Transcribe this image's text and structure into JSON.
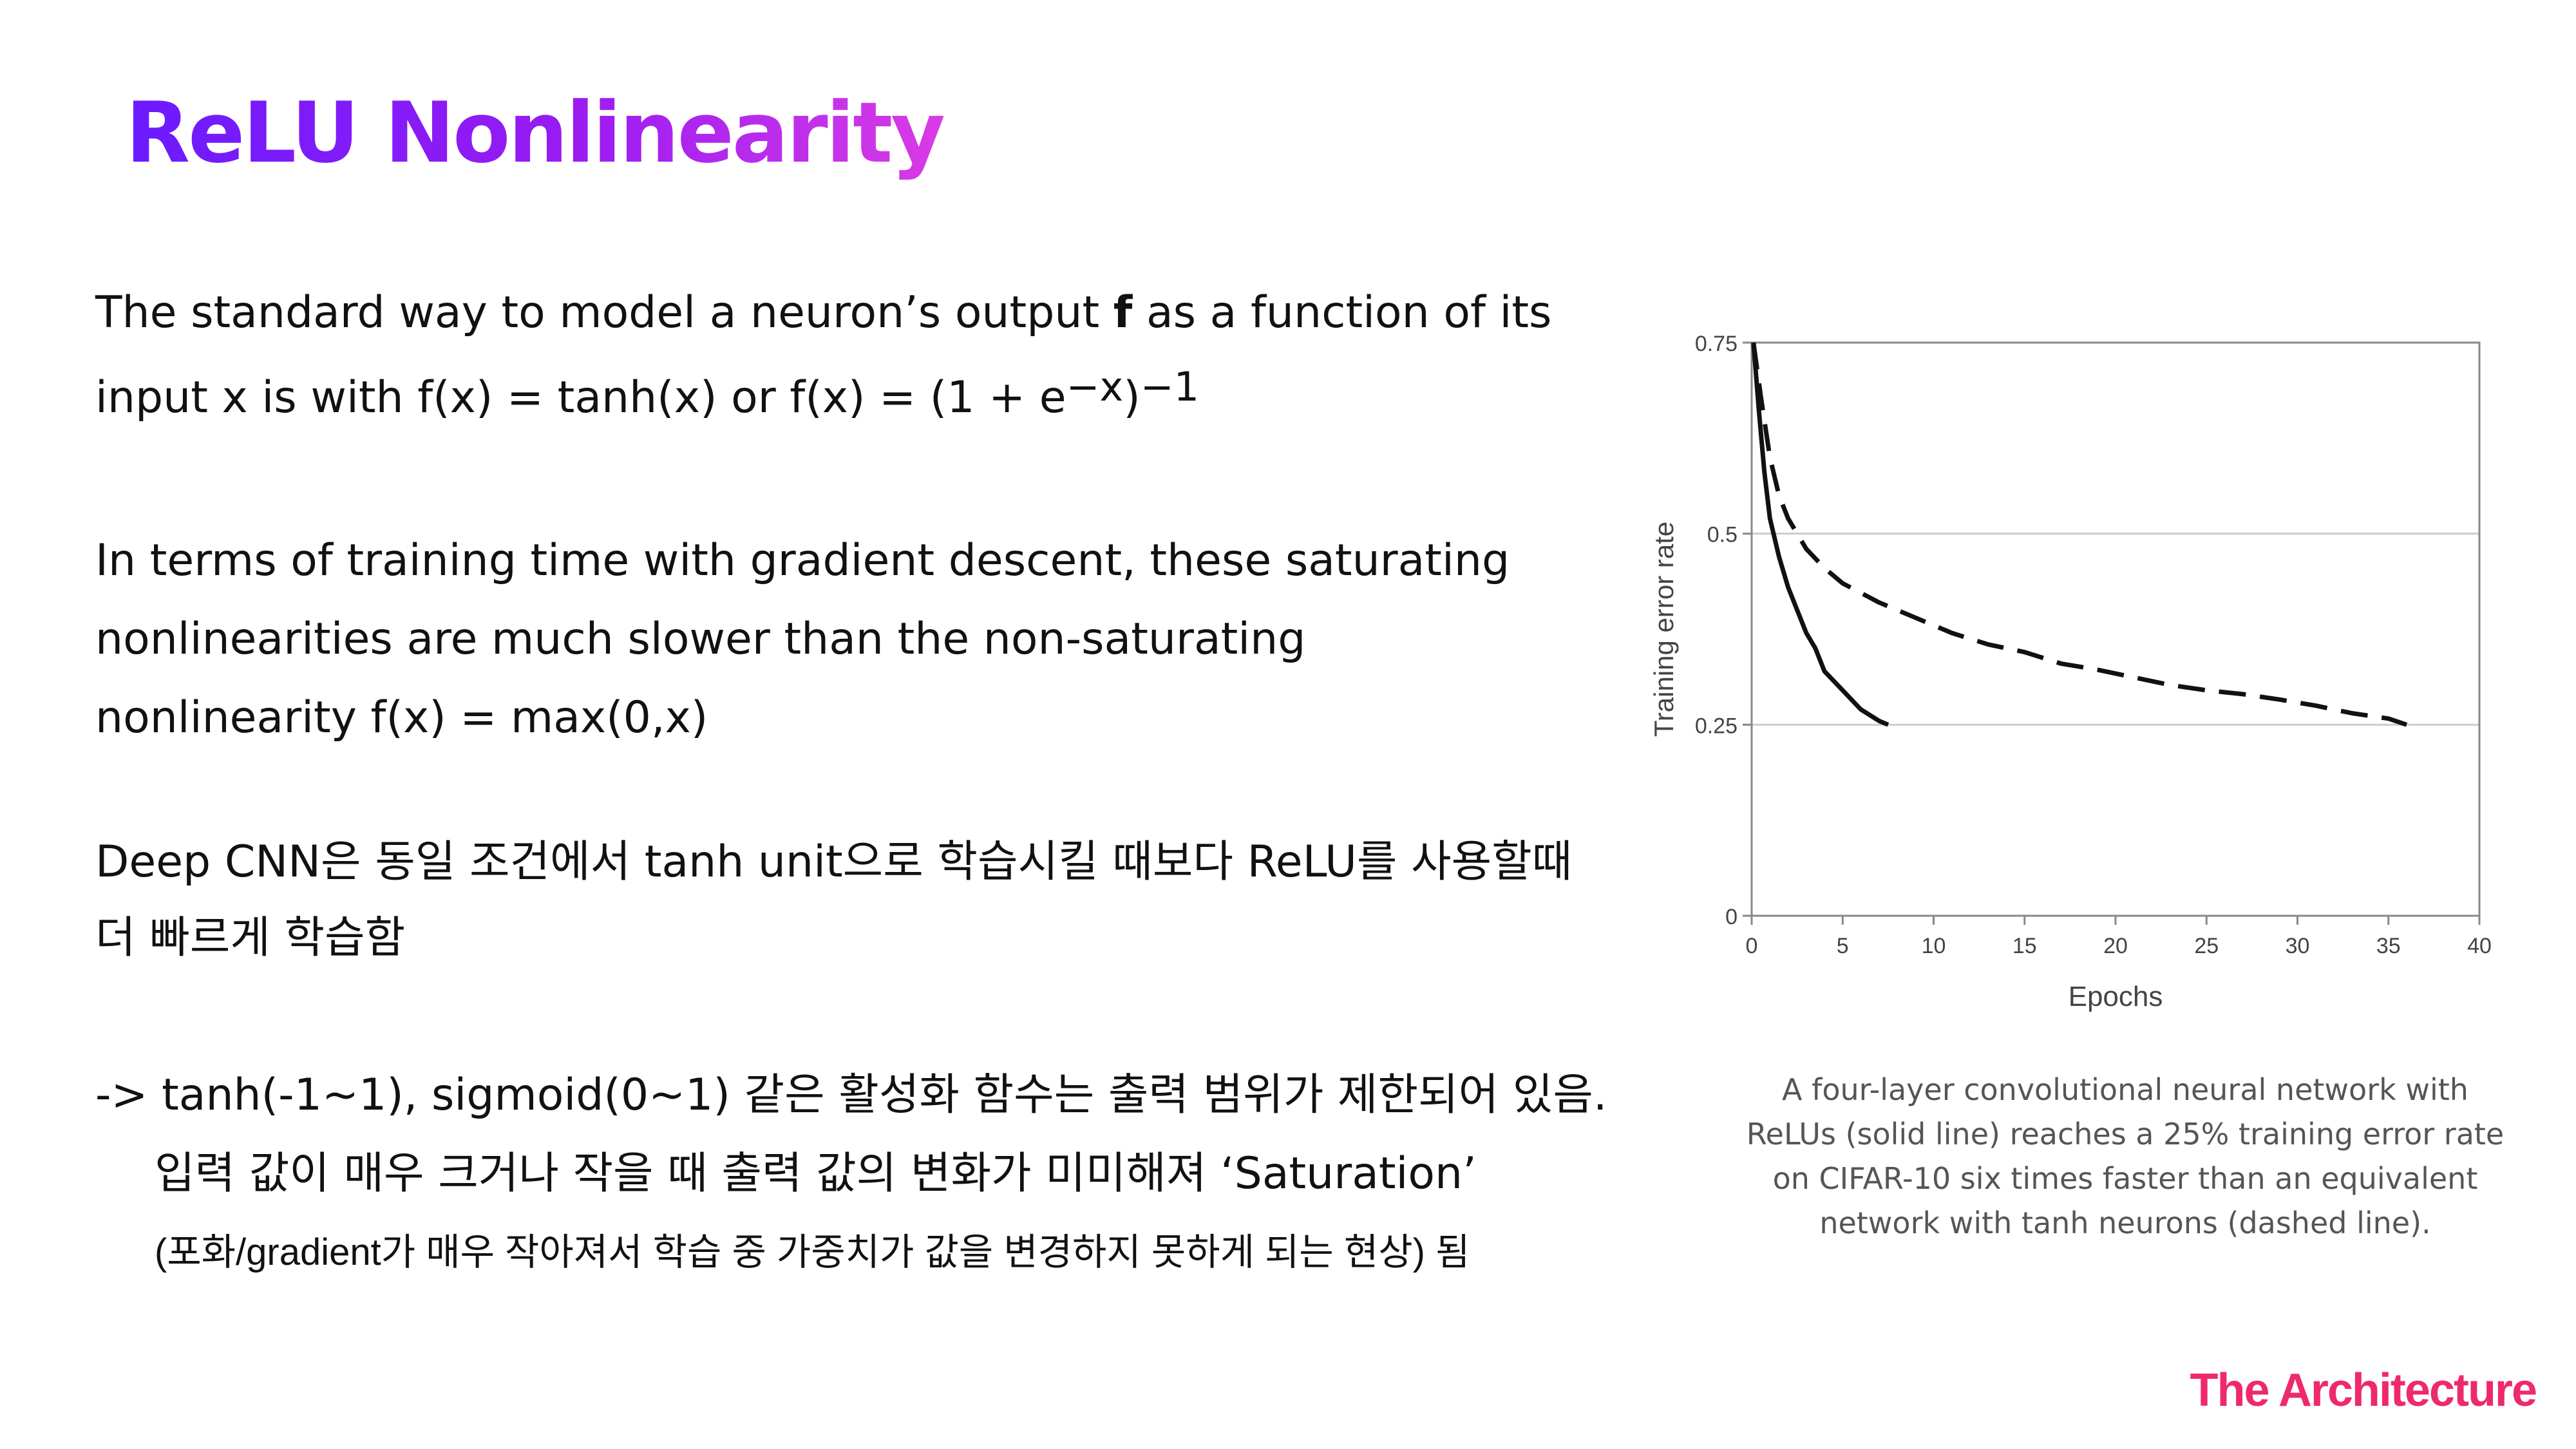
{
  "slide": {
    "title": "ReLU Nonlinearity",
    "p1_line1_a": "The standard way to model a neuron’s output ",
    "p1_line1_bold": "f",
    "p1_line1_b": " as a function of its",
    "p1_line2_a": "input x is with f(x) = tanh(x) or f(x) = (1 + e",
    "p1_line2_sup1": "−x",
    "p1_line2_b": ")",
    "p1_line2_sup2": "−1",
    "p2_line1": "In terms of training time with gradient descent, these saturating",
    "p2_line2": "nonlinearities are much slower than the non-saturating",
    "p2_line3": "nonlinearity f(x) = max(0,x)",
    "p3_line1": "Deep CNN은 동일 조건에서 tanh unit으로 학습시킬 때보다 ReLU를 사용할때",
    "p3_line2": "더 빠르게 학습함",
    "p4_line1": "->  tanh(-1~1), sigmoid(0~1) 같은 활성화 함수는 출력 범위가 제한되어 있음.",
    "p4_line2": "입력 값이 매우 크거나 작을 때 출력 값의 변화가 미미해져 ‘Saturation’",
    "p4_line3": "(포화/gradient가 매우 작아져서 학습 중 가중치가 값을 변경하지 못하게 되는 현상) 됨",
    "caption_line1": "A four-layer convolutional neural network with",
    "caption_line2": "ReLUs (solid line) reaches a 25% training error rate",
    "caption_line3": "on CIFAR-10 six times faster than an equivalent",
    "caption_line4": "network with tanh neurons (dashed line).",
    "brand": "The Architecture",
    "colors": {
      "title_start": "#6a1bff",
      "title_end": "#d93be6",
      "brand": "#ee2a6b"
    }
  },
  "chart_data": {
    "type": "line",
    "xlabel": "Epochs",
    "ylabel": "Training error rate",
    "xlim": [
      0,
      40
    ],
    "ylim": [
      0,
      0.75
    ],
    "x_ticks": [
      "0",
      "5",
      "10",
      "15",
      "20",
      "25",
      "30",
      "35",
      "40"
    ],
    "y_ticks": [
      "0",
      "0.25",
      "0.5",
      "0.75"
    ],
    "grid": "horizontal",
    "series": [
      {
        "style": "solid",
        "points": [
          [
            0.1,
            0.75
          ],
          [
            0.4,
            0.66
          ],
          [
            0.7,
            0.58
          ],
          [
            1.0,
            0.52
          ],
          [
            1.5,
            0.47
          ],
          [
            2.0,
            0.43
          ],
          [
            2.5,
            0.4
          ],
          [
            3.0,
            0.37
          ],
          [
            3.5,
            0.35
          ],
          [
            4.0,
            0.32
          ],
          [
            5.0,
            0.295
          ],
          [
            6.0,
            0.27
          ],
          [
            7.0,
            0.255
          ],
          [
            7.5,
            0.25
          ]
        ]
      },
      {
        "style": "dashed",
        "points": [
          [
            0.1,
            0.75
          ],
          [
            0.5,
            0.68
          ],
          [
            1.0,
            0.6
          ],
          [
            1.5,
            0.55
          ],
          [
            2.0,
            0.52
          ],
          [
            3.0,
            0.48
          ],
          [
            4.0,
            0.455
          ],
          [
            5.0,
            0.435
          ],
          [
            7.0,
            0.41
          ],
          [
            9.0,
            0.39
          ],
          [
            11.0,
            0.37
          ],
          [
            13.0,
            0.355
          ],
          [
            15.0,
            0.345
          ],
          [
            17.0,
            0.33
          ],
          [
            19.0,
            0.322
          ],
          [
            21.0,
            0.312
          ],
          [
            23.0,
            0.302
          ],
          [
            25.0,
            0.295
          ],
          [
            27.0,
            0.29
          ],
          [
            29.0,
            0.283
          ],
          [
            31.0,
            0.275
          ],
          [
            33.0,
            0.265
          ],
          [
            35.0,
            0.258
          ],
          [
            36.0,
            0.25
          ]
        ]
      }
    ]
  }
}
